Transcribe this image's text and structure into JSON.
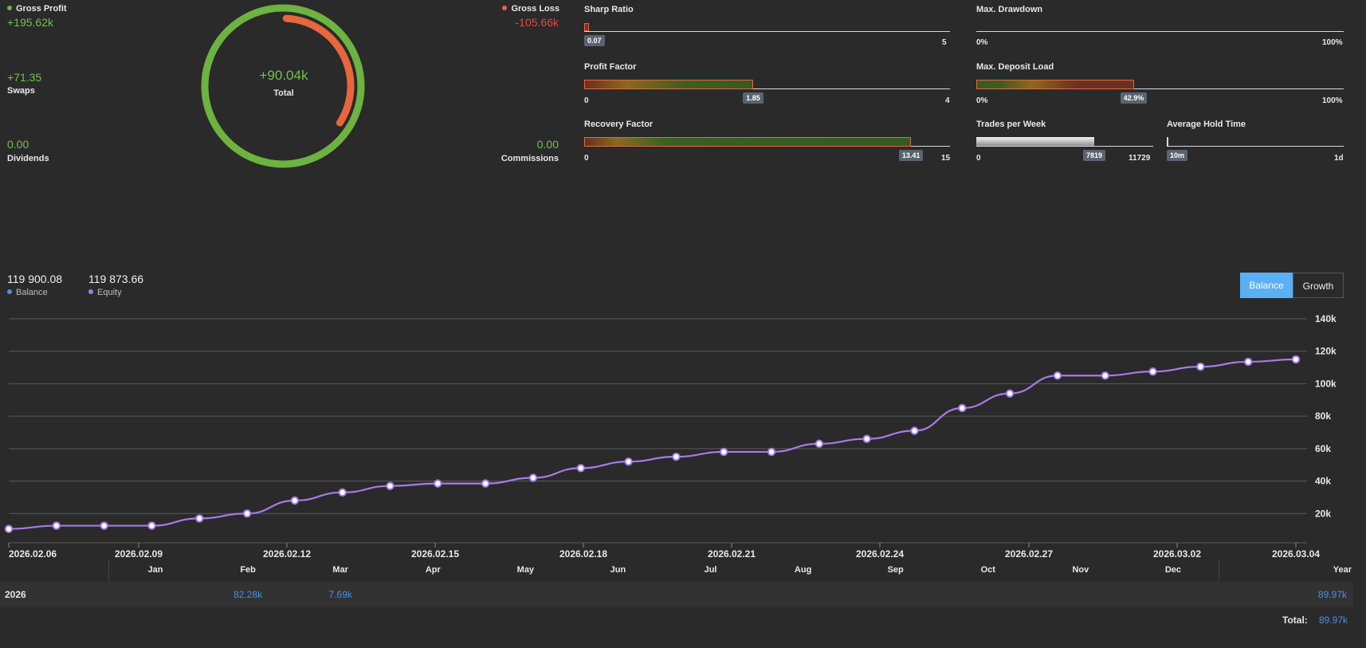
{
  "summary": {
    "gross_profit": {
      "label": "Gross Profit",
      "value": "+195.62k"
    },
    "gross_loss": {
      "label": "Gross Loss",
      "value": "-105.66k"
    },
    "swaps": {
      "label": "Swaps",
      "value": "+71.35"
    },
    "dividends": {
      "label": "Dividends",
      "value": "0.00"
    },
    "commissions": {
      "label": "Commissions",
      "value": "0.00"
    },
    "total": {
      "label": "Total",
      "value": "+90.04k"
    },
    "ring": {
      "profit": 195.62,
      "loss": 105.66
    }
  },
  "metrics": {
    "sharp_ratio": {
      "title": "Sharp Ratio",
      "min": "0",
      "max": "5",
      "value_label": "0.07",
      "value": 0.07,
      "range": 5
    },
    "profit_factor": {
      "title": "Profit Factor",
      "min": "0",
      "max": "4",
      "value_label": "1.85",
      "value": 1.85,
      "range": 4
    },
    "recovery_factor": {
      "title": "Recovery Factor",
      "min": "0",
      "max": "15",
      "value_label": "13.41",
      "value": 13.41,
      "range": 15
    },
    "max_drawdown": {
      "title": "Max. Drawdown",
      "min": "0%",
      "max": "100%"
    },
    "max_deposit_load": {
      "title": "Max. Deposit Load",
      "min": "0%",
      "max": "100%",
      "value_label": "42.9%",
      "value": 42.9,
      "range": 100
    },
    "trades_per_week": {
      "title": "Trades per Week",
      "min": "0",
      "max": "11729",
      "value_label": "7819",
      "value": 7819,
      "range": 11729
    },
    "avg_hold_time": {
      "title": "Average Hold Time",
      "min": "10m",
      "max": "1d"
    }
  },
  "balance_panel": {
    "balance_value": "119 900.08",
    "balance_label": "Balance",
    "equity_value": "119 873.66",
    "equity_label": "Equity",
    "toggle_balance": "Balance",
    "toggle_growth": "Growth"
  },
  "chart_data": {
    "type": "line",
    "title": "",
    "xlabel": "",
    "ylabel": "",
    "ylim": [
      0,
      140000
    ],
    "y_ticks": [
      "20k",
      "40k",
      "60k",
      "80k",
      "100k",
      "120k",
      "140k"
    ],
    "x_ticks": [
      "2026.02.06",
      "2026.02.09",
      "2026.02.12",
      "2026.02.15",
      "2026.02.18",
      "2026.02.21",
      "2026.02.24",
      "2026.02.27",
      "2026.03.02",
      "2026.03.04"
    ],
    "series": [
      {
        "name": "Equity",
        "values": [
          10500,
          12500,
          12500,
          12500,
          17000,
          20000,
          28000,
          33000,
          37000,
          38500,
          38500,
          42000,
          48000,
          52000,
          55000,
          58000,
          58000,
          63000,
          66000,
          71000,
          85000,
          94000,
          105000,
          105000,
          107500,
          110500,
          113500,
          115000
        ]
      }
    ]
  },
  "monthly": {
    "months": [
      "Jan",
      "Feb",
      "Mar",
      "Apr",
      "May",
      "Jun",
      "Jul",
      "Aug",
      "Sep",
      "Oct",
      "Nov",
      "Dec"
    ],
    "year_header": "Year",
    "rows": [
      {
        "year": "2026",
        "values": [
          "",
          "82.28k",
          "7.69k",
          "",
          "",
          "",
          "",
          "",
          "",
          "",
          "",
          ""
        ],
        "year_total": "89.97k"
      }
    ],
    "total_label": "Total:",
    "total_value": "89.97k"
  },
  "colors": {
    "profit": "#6db33f",
    "loss": "#e8663c",
    "equity": "#a67be8",
    "balance": "#4a90e2",
    "toggle_active": "#5ab0f5"
  }
}
